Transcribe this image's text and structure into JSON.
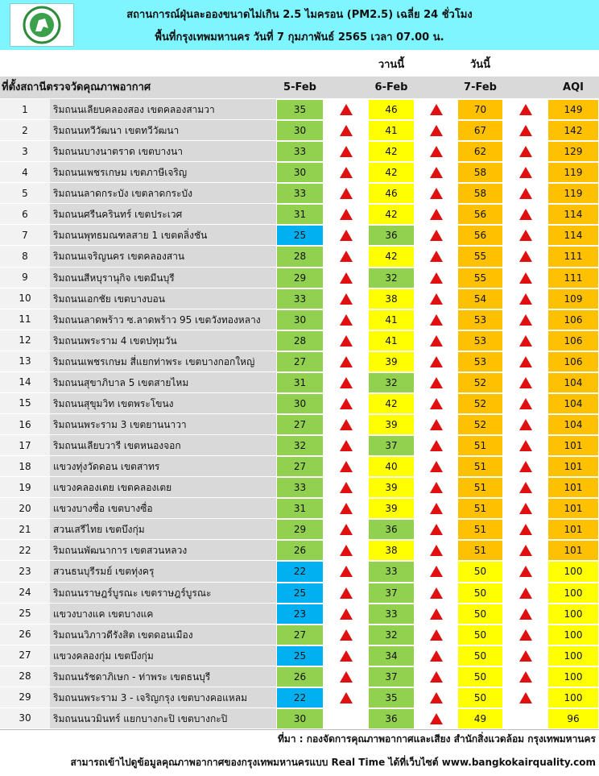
{
  "header": {
    "title": "สถานการณ์ฝุ่นละอองขนาดไม่เกิน 2.5 ไมครอน (PM2.5) เฉลี่ย 24 ชั่วโมง",
    "subtitle": "พื้นที่กรุงเทพมหานคร วันที่ 7 กุมภาพันธ์ 2565 เวลา 07.00 น."
  },
  "table": {
    "day_labels": [
      "วานนี้",
      "วันนี้"
    ],
    "columns": [
      "ที่ตั้งสถานีตรวจวัดคุณภาพอากาศ",
      "5-Feb",
      "6-Feb",
      "7-Feb",
      "AQI"
    ],
    "rows": [
      [
        1,
        "ริมถนนเลียบคลองสอง เขตคลองสามวา",
        35,
        46,
        70,
        149
      ],
      [
        2,
        "ริมถนนทวีวัฒนา เขตทวีวัฒนา",
        30,
        41,
        67,
        142
      ],
      [
        3,
        "ริมถนนบางนาตราด เขตบางนา",
        33,
        42,
        62,
        129
      ],
      [
        4,
        "ริมถนนเพชรเกษม เขตภาษีเจริญ",
        30,
        42,
        58,
        119
      ],
      [
        5,
        "ริมถนนลาดกระบัง เขตลาดกระบัง",
        33,
        46,
        58,
        119
      ],
      [
        6,
        "ริมถนนศรีนครินทร์ เขตประเวศ",
        31,
        42,
        56,
        114
      ],
      [
        7,
        "ริมถนนพุทธมณฑลสาย 1 เขตตลิ่งชัน",
        25,
        36,
        56,
        114
      ],
      [
        8,
        "ริมถนนเจริญนคร เขตคลองสาน",
        28,
        42,
        55,
        111
      ],
      [
        9,
        "ริมถนนสีหบุรานุกิจ เขตมีนบุรี",
        29,
        32,
        55,
        111
      ],
      [
        10,
        "ริมถนนเอกชัย เขตบางบอน",
        33,
        38,
        54,
        109
      ],
      [
        11,
        "ริมถนนลาดพร้าว ซ.ลาดพร้าว 95 เขตวังทองหลาง",
        30,
        41,
        53,
        106
      ],
      [
        12,
        "ริมถนนพระราม 4 เขตปทุมวัน",
        28,
        41,
        53,
        106
      ],
      [
        13,
        "ริมถนนเพชรเกษม สี่แยกท่าพระ เขตบางกอกใหญ่",
        27,
        39,
        53,
        106
      ],
      [
        14,
        "ริมถนนสุขาภิบาล 5 เขตสายไหม",
        31,
        32,
        52,
        104
      ],
      [
        15,
        "ริมถนนสุขุมวิท เขตพระโขนง",
        30,
        42,
        52,
        104
      ],
      [
        16,
        "ริมถนนพระราม 3 เขตยานนาวา",
        27,
        39,
        52,
        104
      ],
      [
        17,
        "ริมถนนเลียบวารี เขตหนองจอก",
        32,
        37,
        51,
        101
      ],
      [
        18,
        "แขวงทุ่งวัดดอน เขตสาทร",
        27,
        40,
        51,
        101
      ],
      [
        19,
        "แขวงคลองเตย เขตคลองเตย",
        33,
        39,
        51,
        101
      ],
      [
        20,
        "แขวงบางซื่อ เขตบางซื่อ",
        31,
        39,
        51,
        101
      ],
      [
        21,
        "สวนเสรีไทย เขตบึงกุ่ม",
        29,
        36,
        51,
        101
      ],
      [
        22,
        "ริมถนนพัฒนาการ เขตสวนหลวง",
        26,
        38,
        51,
        101
      ],
      [
        23,
        "สวนธนบุรีรมย์ เขตทุ่งครุ",
        22,
        33,
        50,
        100
      ],
      [
        24,
        "ริมถนนราษฎร์บูรณะ เขตราษฎร์บูรณะ",
        25,
        37,
        50,
        100
      ],
      [
        25,
        "แขวงบางแค เขตบางแค",
        23,
        33,
        50,
        100
      ],
      [
        26,
        "ริมถนนวิภาวดีรังสิต เขตดอนเมือง",
        27,
        32,
        50,
        100
      ],
      [
        27,
        "แขวงคลองกุ่ม เขตบึงกุ่ม",
        25,
        34,
        50,
        100
      ],
      [
        28,
        "ริมถนนรัชดาภิเษก - ท่าพระ เขตธนบุรี",
        26,
        37,
        50,
        100
      ],
      [
        29,
        "ริมถนนพระราม 3 - เจริญกรุง เขตบางคอแหลม",
        22,
        35,
        50,
        100
      ],
      [
        30,
        "ริมถนนนวมินทร์ แยกบางกะปิ เขตบางกะปิ",
        30,
        36,
        49,
        96
      ]
    ]
  },
  "footer": {
    "source": "ที่มา : กองจัดการคุณภาพอากาศและเสียง สำนักสิ่งแวดล้อม กรุงเทพมหานคร",
    "website": "สามารถเข้าไปดูข้อมูลคุณภาพอากาศของกรุงเทพมหานครแบบ Real Time ได้ที่เว็บไซต์ www.bangkokairquality.com"
  }
}
